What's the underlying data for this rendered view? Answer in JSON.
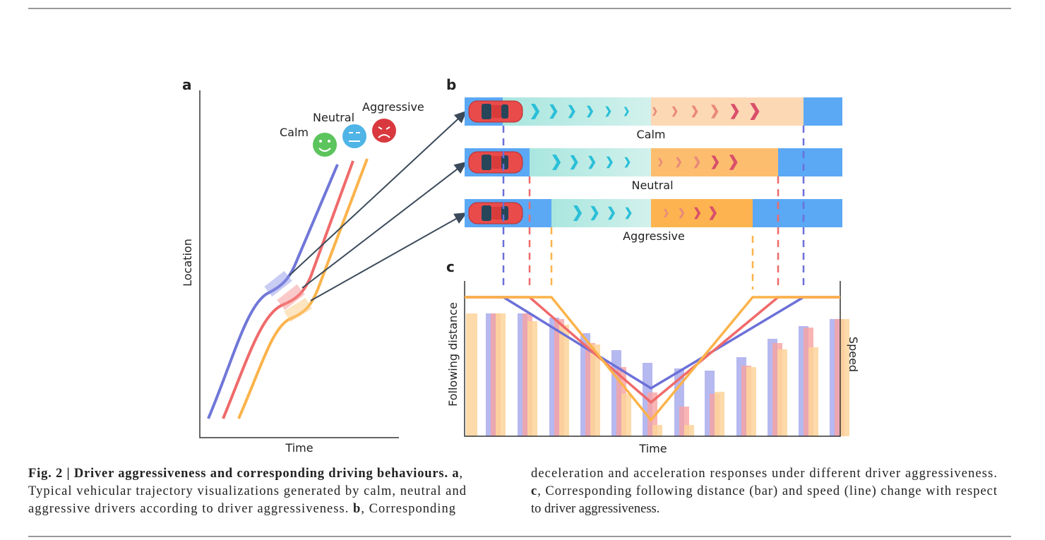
{
  "panel_a": {
    "label": "a",
    "y_axis": "Location",
    "x_axis": "Time",
    "faces": [
      "Calm",
      "Neutral",
      "Aggressive"
    ]
  },
  "panel_b": {
    "label": "b",
    "roads": [
      "Calm",
      "Neutral",
      "Aggressive"
    ]
  },
  "panel_c": {
    "label": "c",
    "y_axis": "Following distance",
    "y2_axis": "Speed",
    "x_axis": "Time"
  },
  "caption": {
    "left": [
      [
        {
          "text": "Fig. 2 | Driver aggressiveness and corresponding driving behaviours. a",
          "bold": true
        },
        {
          "text": ","
        }
      ],
      [
        {
          "text": "Typical vehicular trajectory visualizations generated by calm, neutral and"
        }
      ],
      [
        {
          "text": "aggressive drivers according to driver aggressiveness. "
        },
        {
          "text": "b",
          "bold": true
        },
        {
          "text": ", Corresponding"
        }
      ]
    ],
    "right": [
      [
        {
          "text": "deceleration and acceleration responses under different driver aggressiveness."
        }
      ],
      [
        {
          "text": "c",
          "bold": true
        },
        {
          "text": ", Corresponding following distance (bar) and speed (line) change with respect"
        }
      ],
      [
        {
          "text": "to driver aggressiveness."
        }
      ]
    ]
  }
}
